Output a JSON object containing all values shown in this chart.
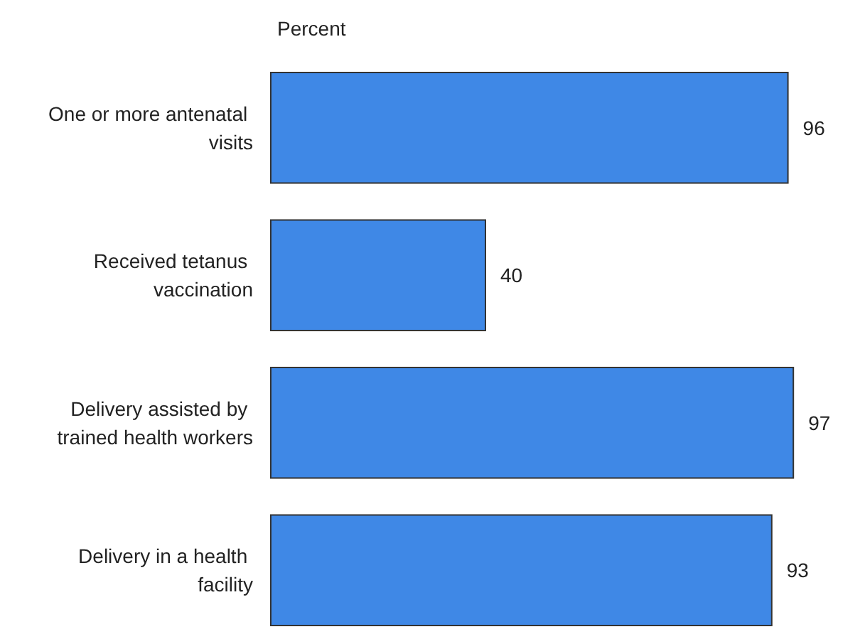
{
  "chart_data": {
    "type": "bar",
    "orientation": "horizontal",
    "xlabel": "Percent",
    "categories": [
      "One or more antenatal visits",
      "Received tetanus vaccination",
      "Delivery assisted by trained health workers",
      "Delivery in a health facility"
    ],
    "values": [
      96,
      40,
      97,
      93
    ],
    "color": "#3f88e6",
    "data_labels": true,
    "tick_labels": "y"
  }
}
